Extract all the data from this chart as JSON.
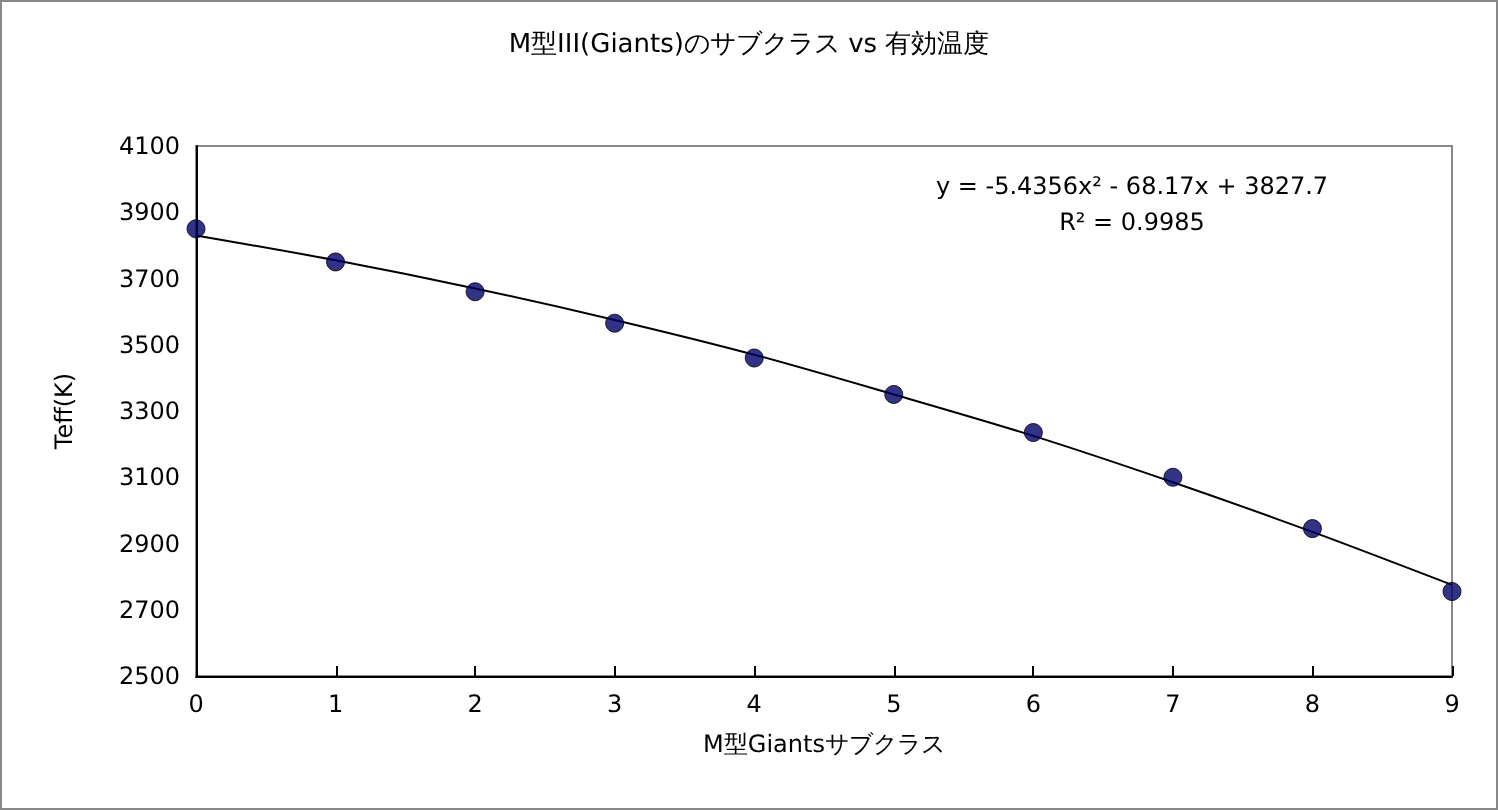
{
  "chart_data": {
    "type": "scatter",
    "title": "M型III(Giants)のサブクラス vs 有効温度",
    "xlabel": "M型Giantsサブクラス",
    "ylabel": "Teff(K)",
    "x": [
      0,
      1,
      2,
      3,
      4,
      5,
      6,
      7,
      8,
      9
    ],
    "series": [
      {
        "color": "#000066",
        "marker": "circle",
        "values": [
          3850,
          3750,
          3660,
          3565,
          3460,
          3350,
          3235,
          3100,
          2945,
          2755
        ]
      },
      {
        "type": "line",
        "color": "#000000",
        "marker": "none",
        "line_style": "solid",
        "x": [
          0,
          1,
          2,
          3,
          4,
          5,
          6,
          7,
          8,
          9
        ],
        "values": [
          3830,
          3755,
          3670,
          3575,
          3470,
          3350,
          3225,
          3085,
          2935,
          2775
        ]
      }
    ],
    "annotations": [
      "y = -5.4356x² - 68.17x + 3827.7",
      "R² = 0.9985"
    ],
    "xlim": [
      0,
      9
    ],
    "xticks": [
      0,
      1,
      2,
      3,
      4,
      5,
      6,
      7,
      8,
      9
    ],
    "ylim": [
      2500,
      4100
    ],
    "yticks": [
      2500,
      2700,
      2900,
      3100,
      3300,
      3500,
      3700,
      3900,
      4100
    ],
    "grid": false,
    "legend": false
  }
}
